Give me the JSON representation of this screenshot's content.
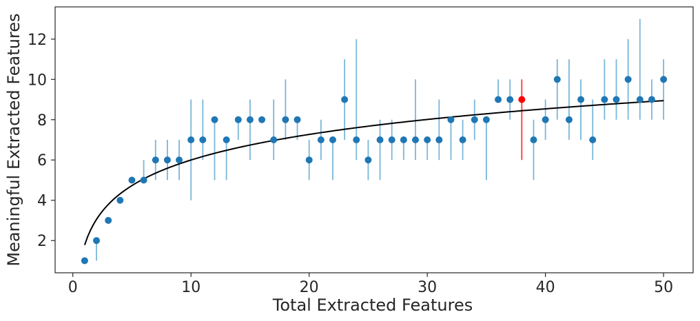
{
  "chart_data": {
    "type": "scatter",
    "title": "",
    "xlabel": "Total Extracted Features",
    "ylabel": "Meaningful Extracted Features",
    "xlim": [
      -1.5,
      52.5
    ],
    "ylim": [
      0.4,
      13.6
    ],
    "xticks": [
      0,
      10,
      20,
      30,
      40,
      50
    ],
    "yticks": [
      2,
      4,
      6,
      8,
      10,
      12
    ],
    "grid": false,
    "colors": {
      "points": "#1f77b4",
      "errorbars": "#6baed6",
      "highlight": "#ff0000",
      "fit": "#000000"
    },
    "highlight_x": 38,
    "series": [
      {
        "x": [
          1,
          2,
          3,
          4,
          5,
          6,
          7,
          8,
          9,
          10,
          11,
          12,
          13,
          14,
          15,
          16,
          17,
          18,
          19,
          20,
          21,
          22,
          23,
          24,
          25,
          26,
          27,
          28,
          29,
          30,
          31,
          32,
          33,
          34,
          35,
          36,
          37,
          38,
          39,
          40,
          41,
          42,
          43,
          44,
          45,
          46,
          47,
          48,
          49,
          50
        ],
        "y": [
          1,
          2,
          3,
          4,
          5,
          5,
          6,
          6,
          6,
          7,
          7,
          8,
          7,
          8,
          8,
          8,
          7,
          8,
          8,
          6,
          7,
          7,
          9,
          7,
          6,
          7,
          7,
          7,
          7,
          7,
          7,
          8,
          7,
          8,
          8,
          9,
          9,
          9,
          7,
          8,
          10,
          8,
          9,
          7,
          9,
          9,
          10,
          9,
          9,
          10
        ],
        "ylow": [
          1,
          1,
          3,
          4,
          5,
          5,
          5,
          5,
          5,
          4,
          6,
          5,
          5,
          7,
          6,
          8,
          6,
          7,
          7,
          5,
          6,
          5,
          7,
          6,
          5,
          5,
          6,
          6,
          6,
          6,
          6,
          6,
          6,
          7,
          5,
          9,
          8,
          6,
          5,
          7,
          8,
          7,
          7,
          6,
          8,
          8,
          8,
          8,
          8,
          8
        ],
        "yhigh": [
          1,
          2,
          3,
          4,
          5,
          6,
          7,
          7,
          7,
          9,
          9,
          8,
          7,
          8,
          9,
          8,
          9,
          10,
          8,
          7,
          8,
          7,
          11,
          12,
          7,
          8,
          8,
          7,
          10,
          7,
          9,
          8,
          8,
          9,
          8,
          10,
          10,
          10,
          8,
          9,
          11,
          11,
          10,
          9,
          11,
          11,
          12,
          13,
          10,
          11
        ]
      }
    ],
    "fit_curve": {
      "type": "log",
      "a": 1.78,
      "b": 1.832,
      "x_range": [
        1,
        50
      ]
    }
  }
}
